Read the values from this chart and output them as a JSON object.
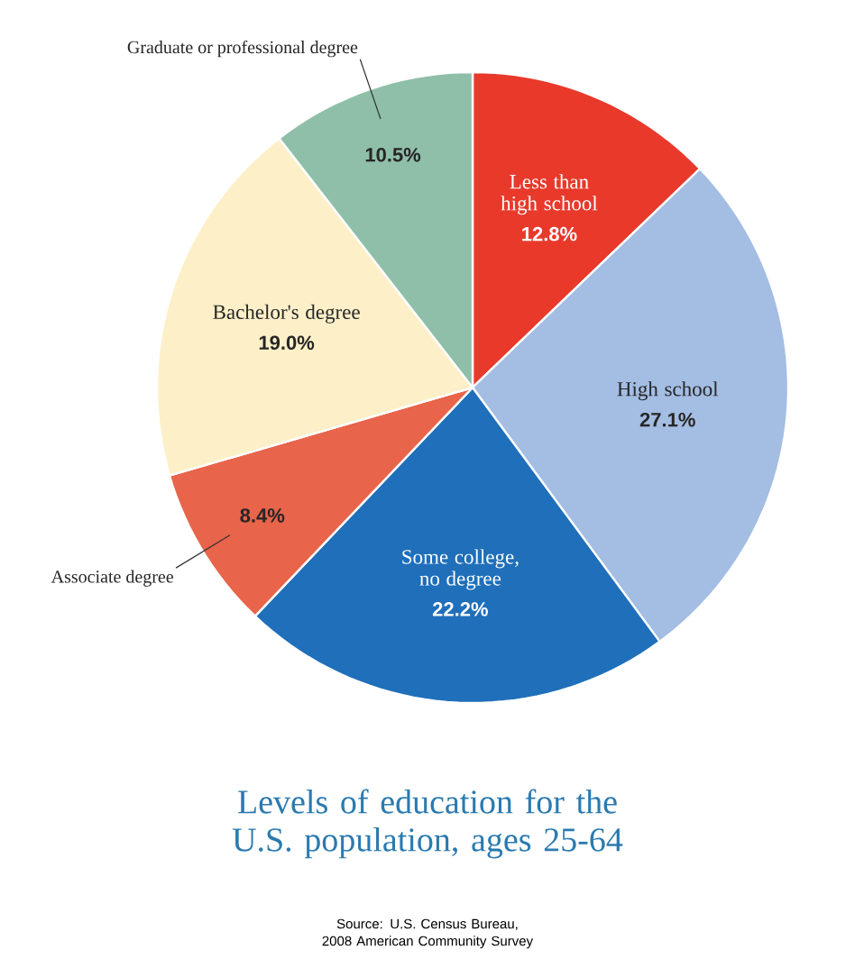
{
  "chart_data": {
    "type": "pie",
    "title": "Levels of education for the U.S. population, ages 25-64",
    "categories": [
      "Less than high school",
      "High school",
      "Some college, no degree",
      "Associate degree",
      "Bachelor's degree",
      "Graduate or professional degree"
    ],
    "values": [
      12.8,
      27.1,
      22.2,
      8.4,
      19.0,
      10.5
    ],
    "value_labels": [
      "12.8%",
      "27.1%",
      "22.2%",
      "8.4%",
      "19.0%",
      "10.5%"
    ],
    "colors": [
      "#e8392b",
      "#a4bde3",
      "#1f6fba",
      "#e8644a",
      "#fdf0c8",
      "#8fbfa8"
    ],
    "annotations": [
      "Source: U.S. Census Bureau, 2008 American Community Survey"
    ]
  }
}
